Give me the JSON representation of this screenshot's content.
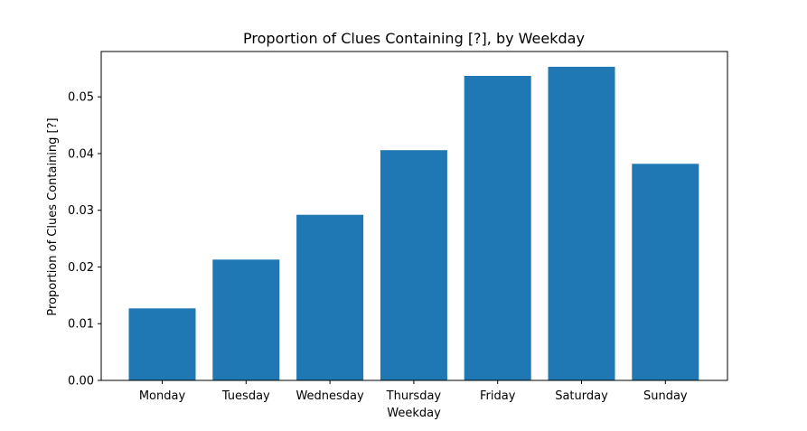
{
  "chart_data": {
    "type": "bar",
    "title": "Proportion of Clues Containing [?], by Weekday",
    "xlabel": "Weekday",
    "ylabel": "Proportion of Clues Containing [?]",
    "categories": [
      "Monday",
      "Tuesday",
      "Wednesday",
      "Thursday",
      "Friday",
      "Saturday",
      "Sunday"
    ],
    "values": [
      0.0127,
      0.0213,
      0.0292,
      0.0406,
      0.0537,
      0.0553,
      0.0382
    ],
    "ylim": [
      0,
      0.058
    ],
    "yticks": [
      "0.00",
      "0.01",
      "0.02",
      "0.03",
      "0.04",
      "0.05"
    ],
    "grid": false,
    "colors": {
      "bar": "#1f77b4",
      "axis": "#000000",
      "background": "#ffffff"
    }
  }
}
